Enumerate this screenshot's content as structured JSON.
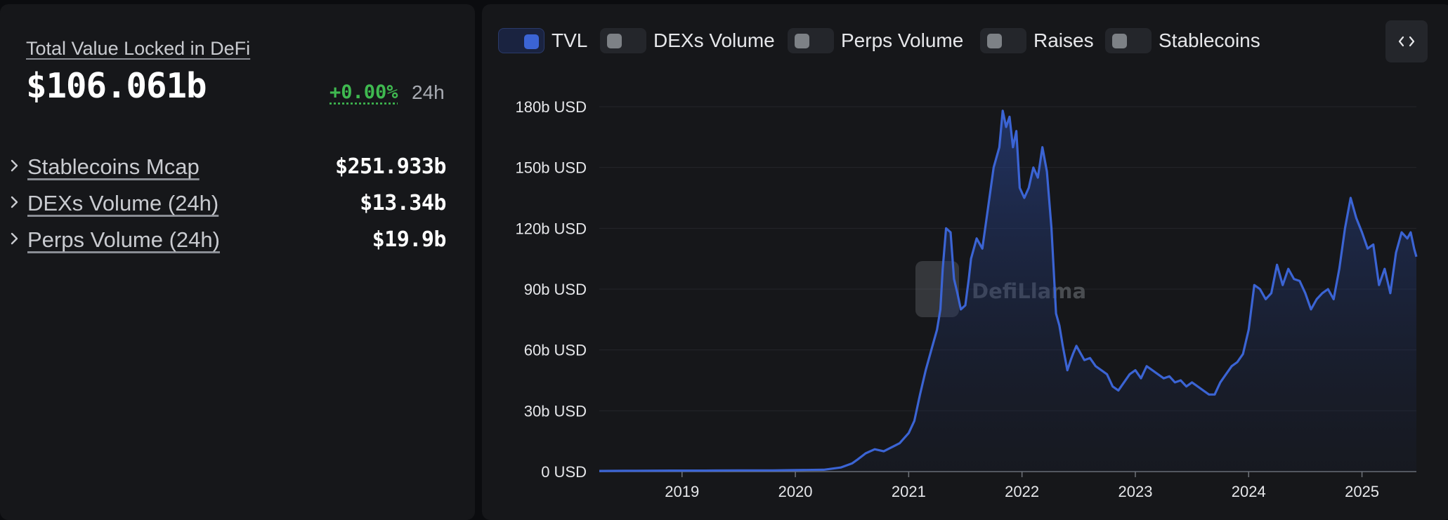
{
  "summary": {
    "tvl_label": "Total Value Locked in DeFi",
    "tvl_value": "$106.061b",
    "tvl_change": "+0.00%",
    "tvl_period": "24h",
    "metrics": [
      {
        "label": "Stablecoins Mcap",
        "value": "$251.933b"
      },
      {
        "label": "DEXs Volume (24h)",
        "value": "$13.34b"
      },
      {
        "label": "Perps Volume (24h)",
        "value": "$19.9b"
      }
    ]
  },
  "legend": [
    {
      "label": "TVL",
      "active": true
    },
    {
      "label": "DEXs Volume",
      "active": false
    },
    {
      "label": "Perps Volume",
      "active": false
    },
    {
      "label": "Raises",
      "active": false
    },
    {
      "label": "Stablecoins",
      "active": false
    }
  ],
  "embed_icon": "code-icon",
  "watermark": "DefiLlama",
  "colors": {
    "line": "#3b64d4",
    "positive": "#3fb950",
    "panel": "#16171a"
  },
  "chart_data": {
    "type": "area",
    "title": "",
    "series": [
      {
        "name": "TVL",
        "x": [
          2018.27,
          2018.6,
          2018.9,
          2019.2,
          2019.5,
          2019.8,
          2019.95,
          2020.1,
          2020.25,
          2020.4,
          2020.5,
          2020.55,
          2020.62,
          2020.7,
          2020.78,
          2020.85,
          2020.92,
          2021.0,
          2021.05,
          2021.1,
          2021.15,
          2021.2,
          2021.25,
          2021.28,
          2021.3,
          2021.33,
          2021.37,
          2021.4,
          2021.43,
          2021.46,
          2021.5,
          2021.53,
          2021.55,
          2021.6,
          2021.65,
          2021.7,
          2021.75,
          2021.8,
          2021.83,
          2021.86,
          2021.89,
          2021.92,
          2021.95,
          2021.98,
          2022.02,
          2022.06,
          2022.1,
          2022.14,
          2022.18,
          2022.22,
          2022.26,
          2022.3,
          2022.33,
          2022.36,
          2022.4,
          2022.43,
          2022.45,
          2022.48,
          2022.5,
          2022.55,
          2022.6,
          2022.65,
          2022.7,
          2022.75,
          2022.8,
          2022.85,
          2022.9,
          2022.95,
          2023.0,
          2023.05,
          2023.1,
          2023.15,
          2023.2,
          2023.25,
          2023.3,
          2023.35,
          2023.4,
          2023.45,
          2023.5,
          2023.55,
          2023.6,
          2023.65,
          2023.7,
          2023.75,
          2023.8,
          2023.85,
          2023.9,
          2023.95,
          2024.0,
          2024.05,
          2024.1,
          2024.15,
          2024.2,
          2024.25,
          2024.3,
          2024.35,
          2024.4,
          2024.45,
          2024.5,
          2024.55,
          2024.6,
          2024.65,
          2024.7,
          2024.75,
          2024.8,
          2024.85,
          2024.9,
          2024.95,
          2025.0,
          2025.05,
          2025.1,
          2025.15,
          2025.2,
          2025.25,
          2025.3,
          2025.35,
          2025.4,
          2025.43,
          2025.46,
          2025.48
        ],
        "values": [
          0.3,
          0.4,
          0.5,
          0.5,
          0.6,
          0.6,
          0.7,
          0.8,
          0.9,
          2,
          4,
          6,
          9,
          11,
          10,
          12,
          14,
          19,
          25,
          38,
          50,
          60,
          70,
          80,
          100,
          120,
          118,
          95,
          88,
          80,
          82,
          95,
          105,
          115,
          110,
          130,
          150,
          160,
          178,
          170,
          175,
          160,
          168,
          140,
          135,
          140,
          150,
          145,
          160,
          148,
          120,
          78,
          72,
          62,
          50,
          55,
          58,
          62,
          60,
          55,
          56,
          52,
          50,
          48,
          42,
          40,
          44,
          48,
          50,
          46,
          52,
          50,
          48,
          46,
          47,
          44,
          45,
          42,
          44,
          42,
          40,
          38,
          38,
          44,
          48,
          52,
          54,
          58,
          70,
          92,
          90,
          85,
          88,
          102,
          92,
          100,
          95,
          94,
          88,
          80,
          85,
          88,
          90,
          85,
          100,
          120,
          135,
          125,
          118,
          110,
          112,
          92,
          100,
          88,
          108,
          118,
          115,
          118,
          110,
          106
        ]
      }
    ],
    "xlabel": "",
    "ylabel": "",
    "xlim": [
      2018.27,
      2025.48
    ],
    "ylim": [
      0,
      180
    ],
    "y_ticks": [
      0,
      30,
      60,
      90,
      120,
      150,
      180
    ],
    "y_tick_labels": [
      "0 USD",
      "30b USD",
      "60b USD",
      "90b USD",
      "120b USD",
      "150b USD",
      "180b USD"
    ],
    "x_ticks": [
      2019,
      2020,
      2021,
      2022,
      2023,
      2024,
      2025
    ],
    "x_tick_labels": [
      "2019",
      "2020",
      "2021",
      "2022",
      "2023",
      "2024",
      "2025"
    ],
    "grid": true,
    "legend_position": "top-left"
  }
}
